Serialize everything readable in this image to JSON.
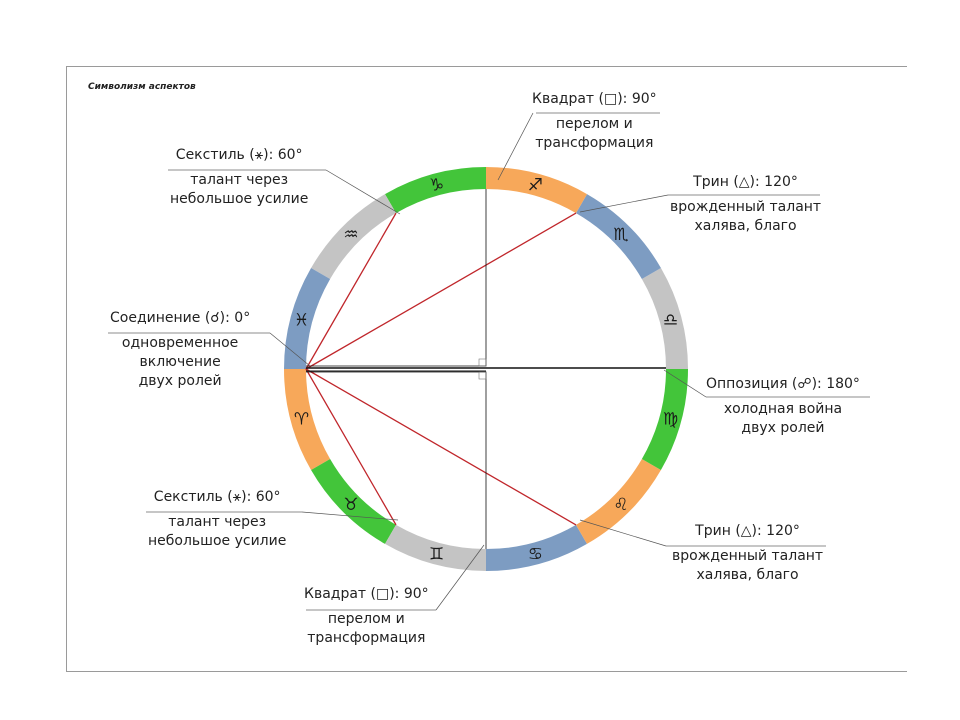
{
  "title": "Символизм аспектов",
  "signs": [
    {
      "name": "aries",
      "glyph": "♈",
      "color": "#f7a85a"
    },
    {
      "name": "taurus",
      "glyph": "♉",
      "color": "#43c53a"
    },
    {
      "name": "gemini",
      "glyph": "♊",
      "color": "#c4c4c4"
    },
    {
      "name": "cancer",
      "glyph": "♋",
      "color": "#7d9cc2"
    },
    {
      "name": "leo",
      "glyph": "♌",
      "color": "#f7a85a"
    },
    {
      "name": "virgo",
      "glyph": "♍",
      "color": "#43c53a"
    },
    {
      "name": "libra",
      "glyph": "♎",
      "color": "#c4c4c4"
    },
    {
      "name": "scorpio",
      "glyph": "♏",
      "color": "#7d9cc2"
    },
    {
      "name": "sagittarius",
      "glyph": "♐",
      "color": "#f7a85a"
    },
    {
      "name": "capricorn",
      "glyph": "♑",
      "color": "#43c53a"
    },
    {
      "name": "aquarius",
      "glyph": "♒",
      "color": "#c4c4c4"
    },
    {
      "name": "pisces",
      "glyph": "♓",
      "color": "#7d9cc2"
    }
  ],
  "aspects": {
    "square_top": {
      "heading": "Квадрат (□): 90°",
      "line1": "перелом и",
      "line2": "трансформация"
    },
    "sextile_top": {
      "heading": "Секстиль (⚹): 60°",
      "line1": "талант через",
      "line2": "небольшое усилие"
    },
    "trine_top": {
      "heading": "Трин (△): 120°",
      "line1": "врожденный талант",
      "line2": "халява, благо"
    },
    "conjunction": {
      "heading": "Соединение (☌): 0°",
      "line1": "одновременное",
      "line2": "включение",
      "line3": "двух ролей"
    },
    "opposition": {
      "heading": "Оппозиция (☍): 180°",
      "line1": "холодная война",
      "line2": "двух ролей"
    },
    "sextile_bottom": {
      "heading": "Секстиль (⚹): 60°",
      "line1": "талант через",
      "line2": "небольшое усилие"
    },
    "trine_bottom": {
      "heading": "Трин (△): 120°",
      "line1": "врожденный талант",
      "line2": "халява, благо"
    },
    "square_bottom": {
      "heading": "Квадрат (□): 90°",
      "line1": "перелом и",
      "line2": "трансформация"
    }
  },
  "colors": {
    "aspect_line": "#c0262b",
    "axis_line": "#111111"
  }
}
